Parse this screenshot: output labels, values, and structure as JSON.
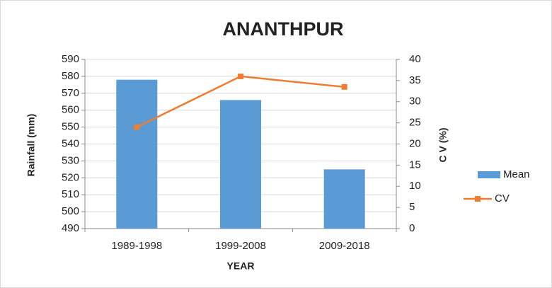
{
  "chart_data": {
    "type": "bar",
    "title": "ANANTHPUR",
    "x_label": "YEAR",
    "y_label": "Rainfall (mm)",
    "y2_label": "C V (%)",
    "categories": [
      "1989-1998",
      "1999-2008",
      "2009-2018"
    ],
    "series": [
      {
        "name": "Mean",
        "color": "#5b9bd5",
        "values": [
          578,
          566,
          525
        ]
      },
      {
        "name": "CV",
        "color": "#ed7d31",
        "type": "line",
        "axis": "y2",
        "values": [
          24,
          36,
          33.5
        ]
      }
    ],
    "ylim": [
      490,
      590
    ],
    "yticks": [
      490,
      500,
      510,
      520,
      530,
      540,
      550,
      560,
      570,
      580,
      590
    ],
    "y2lim": [
      0,
      40
    ],
    "y2ticks": [
      0,
      5,
      10,
      15,
      20,
      25,
      30,
      35,
      40
    ],
    "grid": true,
    "legend": "right"
  }
}
